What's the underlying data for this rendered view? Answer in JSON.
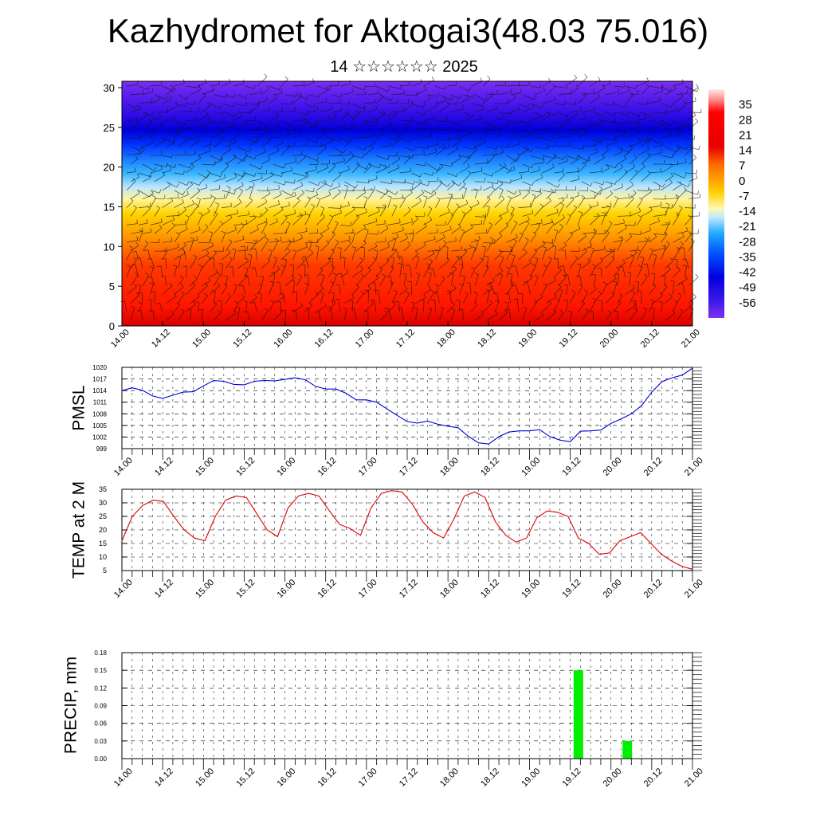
{
  "title": "Kazhydromet for Aktogai3(48.03 75.016)",
  "subtitle": "14 ☆☆☆☆☆☆ 2025",
  "colors": {
    "pmsl_line": "#0000dd",
    "temp_line": "#dd0000",
    "precip_bar": "#00ee00"
  },
  "chart_data": [
    {
      "type": "heatmap",
      "name": "vertical-cross-section",
      "x_ticks": [
        "14.00",
        "14.12",
        "15.00",
        "15.12",
        "16.00",
        "16.12",
        "17.00",
        "17.12",
        "18.00",
        "18.12",
        "19.00",
        "19.12",
        "20.00",
        "20.12",
        "21.00"
      ],
      "y_ticks": [
        0,
        5,
        10,
        15,
        20,
        25,
        30
      ],
      "ylim": [
        0,
        30.8
      ],
      "colorbar_labels": [
        35,
        28,
        21,
        14,
        7,
        0,
        -7,
        -14,
        -21,
        -28,
        -35,
        -42,
        -49,
        -56
      ],
      "colorbar_range": [
        -63,
        42
      ],
      "overlay": "wind barbs"
    },
    {
      "type": "line",
      "name": "pmsl",
      "ylabel": "PMSL",
      "ylim": [
        999,
        1020
      ],
      "y_ticks": [
        999,
        1002,
        1005,
        1008,
        1011,
        1014,
        1017,
        1020
      ],
      "x_ticks": [
        "14.00",
        "14.12",
        "15.00",
        "15.12",
        "16.00",
        "16.12",
        "17.00",
        "17.12",
        "18.00",
        "18.12",
        "19.00",
        "19.12",
        "20.00",
        "20.12",
        "21.00"
      ],
      "values": [
        1014,
        1014.7,
        1014.1,
        1012.6,
        1012,
        1012.8,
        1013.6,
        1013.7,
        1015.2,
        1016.6,
        1016.4,
        1015.6,
        1015.5,
        1016.4,
        1016.6,
        1016.5,
        1016.9,
        1017.3,
        1016.8,
        1015.1,
        1014.4,
        1014.4,
        1013.3,
        1011.6,
        1011.6,
        1011,
        1009.3,
        1007.6,
        1006,
        1005.6,
        1006.1,
        1005.3,
        1004.8,
        1004.4,
        1002.2,
        1000.5,
        1000.2,
        1002.1,
        1003.3,
        1003.6,
        1003.6,
        1003.9,
        1002.1,
        1001.2,
        1000.8,
        1003.5,
        1003.6,
        1003.8,
        1005.5,
        1006.7,
        1008,
        1010.1,
        1013.6,
        1016.3,
        1017.3,
        1018,
        1019.8
      ]
    },
    {
      "type": "line",
      "name": "temp-2m",
      "ylabel": "TEMP at 2 M",
      "ylim": [
        5,
        35
      ],
      "y_ticks": [
        5,
        10,
        15,
        20,
        25,
        30,
        35
      ],
      "x_ticks": [
        "14.00",
        "14.12",
        "15.00",
        "15.12",
        "16.00",
        "16.12",
        "17.00",
        "17.12",
        "18.00",
        "18.12",
        "19.00",
        "19.12",
        "20.00",
        "20.12",
        "21.00"
      ],
      "values": [
        16,
        25,
        29,
        31,
        30.5,
        25,
        20,
        17,
        16,
        25,
        31,
        32.5,
        32,
        26,
        20,
        17.5,
        28,
        32.5,
        33.5,
        32.5,
        27,
        22,
        20.5,
        18,
        28,
        33.5,
        34.5,
        34,
        29.5,
        23,
        19,
        17,
        24,
        32.5,
        34,
        32,
        23,
        18,
        15.5,
        17,
        24.5,
        27,
        26.5,
        25,
        17,
        15,
        11,
        11.5,
        16,
        17.5,
        19,
        15,
        11,
        8.5,
        6.5,
        5.5
      ]
    },
    {
      "type": "bar",
      "name": "precip",
      "ylabel": "PRECIP, mm",
      "ylim": [
        0,
        0.18
      ],
      "y_ticks": [
        "0.00",
        "0.03",
        "0.06",
        "0.09",
        "0.12",
        "0.15",
        "0.18"
      ],
      "x_ticks": [
        "14.00",
        "14.12",
        "15.00",
        "15.12",
        "16.00",
        "16.12",
        "17.00",
        "17.12",
        "18.00",
        "18.12",
        "19.00",
        "19.12",
        "20.00",
        "20.12",
        "21.00"
      ],
      "bars": [
        {
          "x_index": 11.2,
          "value": 0.15
        },
        {
          "x_index": 12.4,
          "value": 0.03
        }
      ]
    }
  ]
}
